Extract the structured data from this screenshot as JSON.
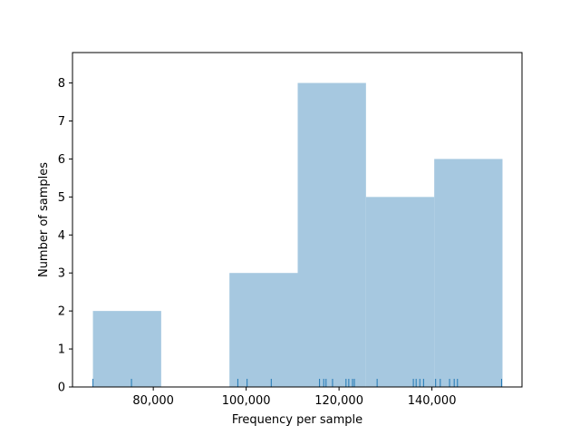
{
  "chart_data": {
    "type": "bar",
    "subtype": "histogram-with-rug",
    "title": "",
    "xlabel": "Frequency per sample",
    "ylabel": "Number of samples",
    "xlim": [
      62600,
      159400
    ],
    "ylim": [
      0,
      8.8
    ],
    "grid": false,
    "bar_color": "#a6c8e0",
    "rug_color": "#1f77b4",
    "bins": [
      {
        "x0": 67000,
        "x1": 81700,
        "count": 2
      },
      {
        "x0": 81700,
        "x1": 96400,
        "count": 0
      },
      {
        "x0": 96400,
        "x1": 111100,
        "count": 3
      },
      {
        "x0": 111100,
        "x1": 125800,
        "count": 8
      },
      {
        "x0": 125800,
        "x1": 140500,
        "count": 5
      },
      {
        "x0": 140500,
        "x1": 155200,
        "count": 6
      }
    ],
    "rug": [
      67000,
      75300,
      98200,
      100200,
      105400,
      115800,
      116700,
      117200,
      118600,
      121500,
      122100,
      122900,
      123300,
      128200,
      136000,
      136600,
      137400,
      138200,
      140800,
      141800,
      143800,
      144800,
      145500,
      155000
    ],
    "x_ticks": [
      {
        "value": 80000,
        "label": "80,000"
      },
      {
        "value": 100000,
        "label": "100,000"
      },
      {
        "value": 120000,
        "label": "120,000"
      },
      {
        "value": 140000,
        "label": "140,000"
      }
    ],
    "y_ticks": [
      {
        "value": 0,
        "label": "0"
      },
      {
        "value": 1,
        "label": "1"
      },
      {
        "value": 2,
        "label": "2"
      },
      {
        "value": 3,
        "label": "3"
      },
      {
        "value": 4,
        "label": "4"
      },
      {
        "value": 5,
        "label": "5"
      },
      {
        "value": 6,
        "label": "6"
      },
      {
        "value": 7,
        "label": "7"
      },
      {
        "value": 8,
        "label": "8"
      }
    ]
  }
}
